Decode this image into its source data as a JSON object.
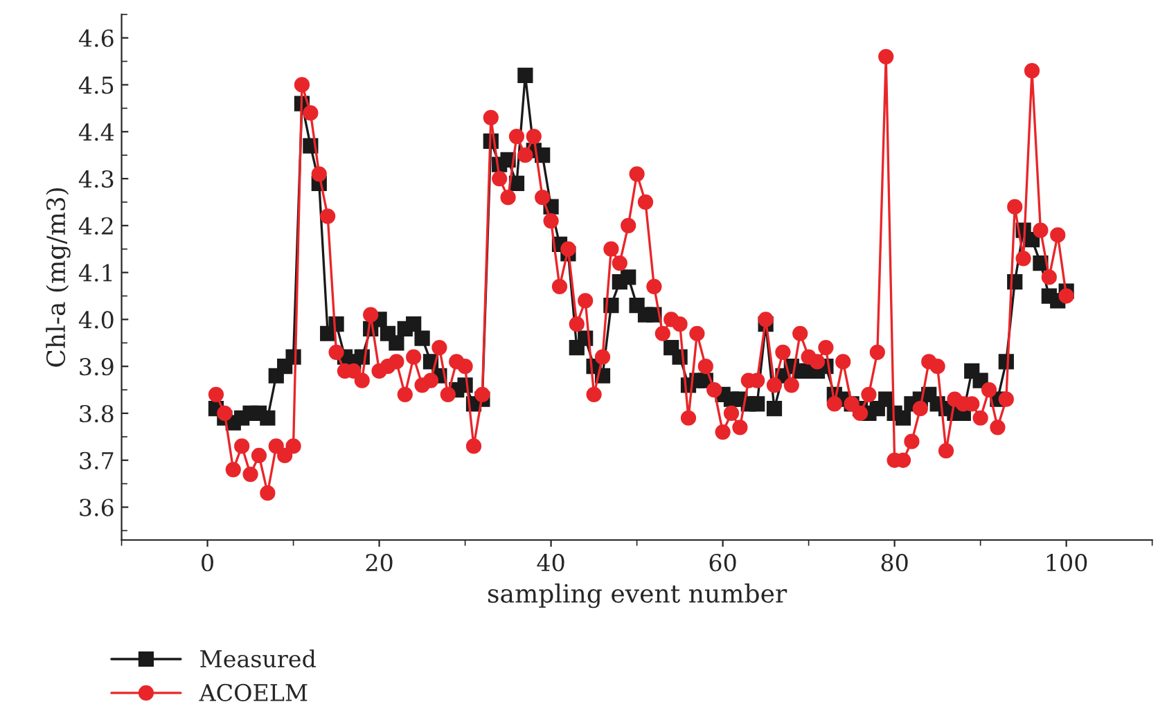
{
  "chart_data": {
    "type": "line",
    "xlabel": "sampling event number",
    "ylabel": "Chl-a (mg/m3)",
    "x": [
      1,
      2,
      3,
      4,
      5,
      6,
      7,
      8,
      9,
      10,
      11,
      12,
      13,
      14,
      15,
      16,
      17,
      18,
      19,
      20,
      21,
      22,
      23,
      24,
      25,
      26,
      27,
      28,
      29,
      30,
      31,
      32,
      33,
      34,
      35,
      36,
      37,
      38,
      39,
      40,
      41,
      42,
      43,
      44,
      45,
      46,
      47,
      48,
      49,
      50,
      51,
      52,
      53,
      54,
      55,
      56,
      57,
      58,
      59,
      60,
      61,
      62,
      63,
      64,
      65,
      66,
      67,
      68,
      69,
      70,
      71,
      72,
      73,
      74,
      75,
      76,
      77,
      78,
      79,
      80,
      81,
      82,
      83,
      84,
      85,
      86,
      87,
      88,
      89,
      90,
      91,
      92,
      93,
      94,
      95,
      96,
      97,
      98,
      99,
      100
    ],
    "series": [
      {
        "name": "Measured",
        "color": "#1a1a1a",
        "marker": "square",
        "values": [
          3.81,
          3.79,
          3.78,
          3.79,
          3.8,
          3.8,
          3.79,
          3.88,
          3.9,
          3.92,
          4.46,
          4.37,
          4.29,
          3.97,
          3.99,
          3.92,
          3.91,
          3.92,
          3.98,
          4.0,
          3.97,
          3.95,
          3.98,
          3.99,
          3.96,
          3.91,
          3.88,
          null,
          3.85,
          3.86,
          3.82,
          3.83,
          4.38,
          4.33,
          4.34,
          4.29,
          4.52,
          4.36,
          4.35,
          4.24,
          4.16,
          4.14,
          3.94,
          3.96,
          3.9,
          3.88,
          4.03,
          4.08,
          4.09,
          4.03,
          4.01,
          4.01,
          null,
          3.94,
          3.92,
          3.86,
          3.87,
          3.87,
          null,
          3.84,
          3.83,
          3.83,
          3.82,
          3.82,
          3.99,
          3.81,
          3.88,
          3.9,
          3.89,
          3.89,
          3.89,
          3.9,
          3.84,
          3.83,
          3.82,
          3.81,
          3.8,
          3.81,
          3.83,
          3.8,
          3.79,
          3.82,
          3.83,
          3.84,
          3.82,
          3.81,
          3.8,
          3.8,
          3.89,
          3.87,
          null,
          3.83,
          3.91,
          4.08,
          4.19,
          4.17,
          4.12,
          4.05,
          4.04,
          4.06
        ]
      },
      {
        "name": "ACOELM",
        "color": "#e8262a",
        "marker": "circle",
        "values": [
          3.84,
          3.8,
          3.68,
          3.73,
          3.67,
          3.71,
          3.63,
          3.73,
          3.71,
          3.73,
          4.5,
          4.44,
          4.31,
          4.22,
          3.93,
          3.89,
          3.89,
          3.87,
          4.01,
          3.89,
          3.9,
          3.91,
          3.84,
          3.92,
          3.86,
          3.87,
          3.94,
          3.84,
          3.91,
          3.9,
          3.73,
          3.84,
          4.43,
          4.3,
          4.26,
          4.39,
          4.35,
          4.39,
          4.26,
          4.21,
          4.07,
          4.15,
          3.99,
          4.04,
          3.84,
          3.92,
          4.15,
          4.12,
          4.2,
          4.31,
          4.25,
          4.07,
          3.97,
          4.0,
          3.99,
          3.79,
          3.97,
          3.9,
          3.85,
          3.76,
          3.8,
          3.77,
          3.87,
          3.87,
          4.0,
          3.86,
          3.93,
          3.86,
          3.97,
          3.92,
          3.91,
          3.94,
          3.82,
          3.91,
          3.82,
          3.8,
          3.84,
          3.93,
          4.56,
          3.7,
          3.7,
          3.74,
          3.81,
          3.91,
          3.9,
          3.72,
          3.83,
          3.82,
          3.82,
          3.79,
          3.85,
          3.77,
          3.83,
          4.24,
          4.13,
          4.53,
          4.19,
          4.09,
          4.18,
          4.05
        ]
      }
    ],
    "xlim": [
      -10,
      110
    ],
    "xticks": [
      0,
      20,
      40,
      60,
      80,
      100
    ],
    "ylim": [
      3.53,
      4.65
    ],
    "yticks": [
      {
        "value": 3.6,
        "label": "3.6"
      },
      {
        "value": 3.7,
        "label": "3.7"
      },
      {
        "value": 3.8,
        "label": "3.8"
      },
      {
        "value": 3.9,
        "label": "3.9"
      },
      {
        "value": 4.0,
        "label": "4.0"
      },
      {
        "value": 4.1,
        "label": "4.1"
      },
      {
        "value": 4.2,
        "label": "4.2"
      },
      {
        "value": 4.3,
        "label": "4.3"
      },
      {
        "value": 4.4,
        "label": "4.4"
      },
      {
        "value": 4.5,
        "label": "4.5"
      },
      {
        "value": 4.6,
        "label": "4.6"
      }
    ],
    "grid": false,
    "legend": "bottom left",
    "line_style": "solid"
  }
}
